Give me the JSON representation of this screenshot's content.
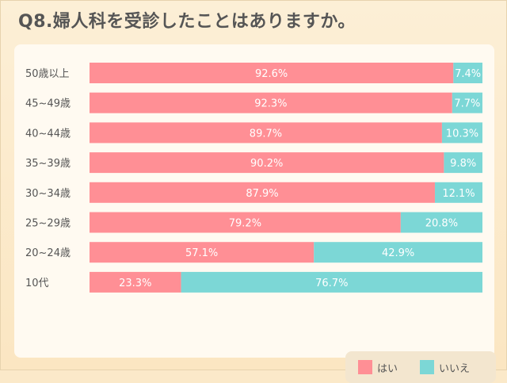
{
  "title": "Q8.婦人科を受診したことはありますか。",
  "colors": {
    "yes": "#ff8f95",
    "no": "#7cd7d6",
    "label_text": "#ffffff",
    "category_text": "#555555"
  },
  "legend": [
    {
      "label": "はい",
      "color": "#ff8f95"
    },
    {
      "label": "いいえ",
      "color": "#7cd7d6"
    }
  ],
  "chart_data": {
    "type": "bar",
    "orientation": "horizontal-stacked-100",
    "categories": [
      "50歳以上",
      "45~49歳",
      "40~44歳",
      "35~39歳",
      "30~34歳",
      "25~29歳",
      "20~24歳",
      "10代"
    ],
    "series": [
      {
        "name": "はい",
        "values": [
          92.6,
          92.3,
          89.7,
          90.2,
          87.9,
          79.2,
          57.1,
          23.3
        ]
      },
      {
        "name": "いいえ",
        "values": [
          7.4,
          7.7,
          10.3,
          9.8,
          12.1,
          20.8,
          42.9,
          76.7
        ]
      }
    ],
    "value_labels": {
      "はい": [
        "92.6%",
        "92.3%",
        "89.7%",
        "90.2%",
        "87.9%",
        "79.2%",
        "57.1%",
        "23.3%"
      ],
      "いいえ": [
        "7.4%",
        "7.7%",
        "10.3%",
        "9.8%",
        "12.1%",
        "20.8%",
        "42.9%",
        "76.7%"
      ]
    },
    "xlim": [
      0,
      100
    ],
    "legend_position": "bottom-right"
  }
}
